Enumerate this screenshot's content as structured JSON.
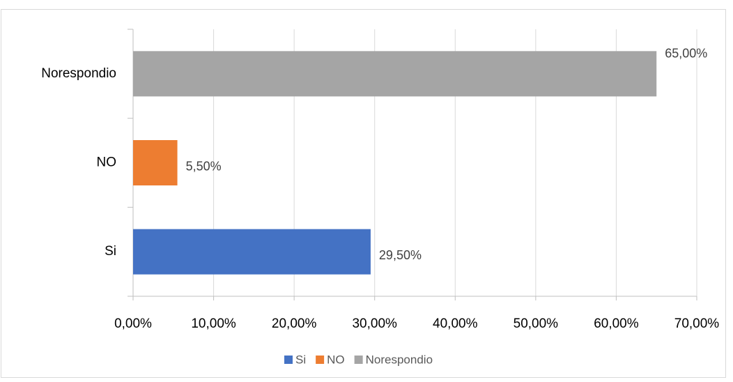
{
  "chart_data": {
    "type": "bar",
    "orientation": "horizontal",
    "categories": [
      "Si",
      "NO",
      "Norespondio"
    ],
    "values": [
      29.5,
      5.5,
      65
    ],
    "value_labels": [
      "29,50%",
      "5,50%",
      "65,00%"
    ],
    "colors": [
      "#4472c4",
      "#ed7d31",
      "#a5a5a5"
    ],
    "xlim": [
      0,
      70
    ],
    "xticks": [
      {
        "value": 0,
        "label": "0,00%"
      },
      {
        "value": 10,
        "label": "10,00%"
      },
      {
        "value": 20,
        "label": "20,00%"
      },
      {
        "value": 30,
        "label": "30,00%"
      },
      {
        "value": 40,
        "label": "40,00%"
      },
      {
        "value": 50,
        "label": "50,00%"
      },
      {
        "value": 60,
        "label": "60,00%"
      },
      {
        "value": 70,
        "label": "70,00%"
      }
    ],
    "grid": true,
    "legend": "bottom"
  }
}
